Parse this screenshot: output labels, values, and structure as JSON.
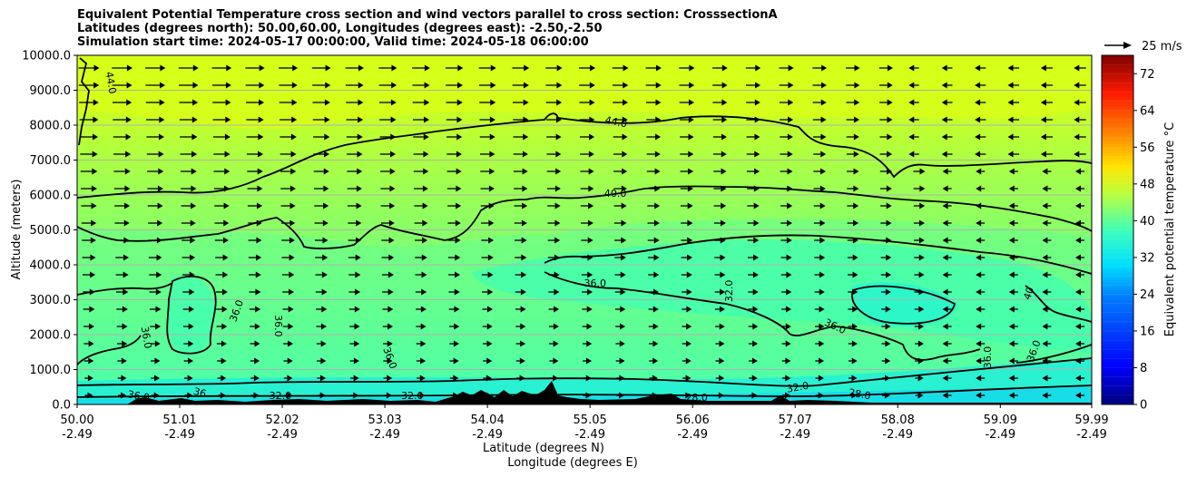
{
  "title_lines": [
    "Equivalent Potential Temperature cross section and wind vectors parallel to cross section: CrosssectionA",
    "Latitudes (degrees north): 50.00,60.00, Longitudes (degrees east): -2.50,-2.50",
    "Simulation start time: 2024-05-17 00:00:00, Valid time: 2024-05-18 06:00:00"
  ],
  "chart_data": {
    "type": "contour_cross_section",
    "ylabel": "Altitude (meters)",
    "xlabel_lines": [
      "Latitude (degrees N)",
      "Longitude (degrees E)"
    ],
    "ylim": [
      0,
      10000
    ],
    "y_ticks": [
      "0.0",
      "1000.0",
      "2000.0",
      "3000.0",
      "4000.0",
      "5000.0",
      "6000.0",
      "7000.0",
      "8000.0",
      "9000.0",
      "10000.0"
    ],
    "y_tick_values": [
      0,
      1000,
      2000,
      3000,
      4000,
      5000,
      6000,
      7000,
      8000,
      9000,
      10000
    ],
    "x_ticks": [
      {
        "lat": "50.00",
        "lon": "-2.49"
      },
      {
        "lat": "51.01",
        "lon": "-2.49"
      },
      {
        "lat": "52.02",
        "lon": "-2.49"
      },
      {
        "lat": "53.03",
        "lon": "-2.49"
      },
      {
        "lat": "54.04",
        "lon": "-2.49"
      },
      {
        "lat": "55.05",
        "lon": "-2.49"
      },
      {
        "lat": "56.06",
        "lon": "-2.49"
      },
      {
        "lat": "57.07",
        "lon": "-2.49"
      },
      {
        "lat": "58.08",
        "lon": "-2.49"
      },
      {
        "lat": "59.09",
        "lon": "-2.49"
      },
      {
        "lat": "59.99",
        "lon": "-2.49"
      }
    ],
    "x_tick_values": [
      50.0,
      51.01,
      52.02,
      53.03,
      54.04,
      55.05,
      56.06,
      57.07,
      58.08,
      59.09,
      59.99
    ],
    "xlim": [
      50.0,
      59.99
    ],
    "contour_labels": [
      {
        "text": "44.0",
        "lat": 50.3,
        "alt": 9200,
        "rot": 80
      },
      {
        "text": "44.0",
        "lat": 55.3,
        "alt": 8000,
        "rot": 12
      },
      {
        "text": "40.0",
        "lat": 55.3,
        "alt": 5950,
        "rot": 0
      },
      {
        "text": "36.0",
        "lat": 55.1,
        "alt": 3380,
        "rot": 0
      },
      {
        "text": "32.0",
        "lat": 56.45,
        "alt": 3250,
        "rot": -90
      },
      {
        "text": "36.0",
        "lat": 51.6,
        "alt": 2650,
        "rot": -70
      },
      {
        "text": "36.0",
        "lat": 51.95,
        "alt": 2250,
        "rot": 90
      },
      {
        "text": "36.0",
        "lat": 50.65,
        "alt": 1900,
        "rot": 80
      },
      {
        "text": "36.0",
        "lat": 53.05,
        "alt": 1300,
        "rot": 70
      },
      {
        "text": "36.0",
        "lat": 57.45,
        "alt": 2150,
        "rot": 25
      },
      {
        "text": "36.0",
        "lat": 59.0,
        "alt": 1350,
        "rot": -90
      },
      {
        "text": "36.0",
        "lat": 59.45,
        "alt": 1500,
        "rot": -70
      },
      {
        "text": "40",
        "lat": 59.4,
        "alt": 3150,
        "rot": -70
      },
      {
        "text": "36.0",
        "lat": 50.6,
        "alt": 150,
        "rot": 10
      },
      {
        "text": "36",
        "lat": 51.2,
        "alt": 250,
        "rot": 15
      },
      {
        "text": "32.0",
        "lat": 52.0,
        "alt": 150,
        "rot": 0
      },
      {
        "text": "32.0",
        "lat": 53.3,
        "alt": 150,
        "rot": 0
      },
      {
        "text": "32.0",
        "lat": 57.1,
        "alt": 400,
        "rot": -10
      },
      {
        "text": "28.0",
        "lat": 57.7,
        "alt": 200,
        "rot": 10
      },
      {
        "text": "28.0",
        "lat": 56.1,
        "alt": 100,
        "rot": 0
      }
    ],
    "colorbar": {
      "label": "Equivalent potential temperature  °C",
      "min": 0,
      "max": 76,
      "ticks": [
        "0",
        "8",
        "16",
        "24",
        "32",
        "40",
        "48",
        "56",
        "64",
        "72"
      ],
      "tick_values": [
        0,
        8,
        16,
        24,
        32,
        40,
        48,
        56,
        64,
        72
      ]
    },
    "wind_key": {
      "label": "25 m/s"
    },
    "colors": {
      "grid": "#b0b0b0",
      "terrain": "#000000"
    }
  }
}
